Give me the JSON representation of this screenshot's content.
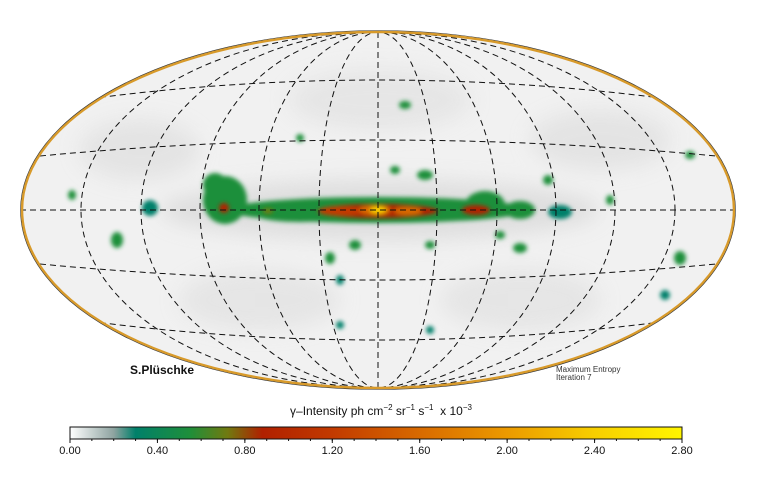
{
  "map": {
    "projection": "Aitoff (all-sky, galactic coordinates)",
    "author_credit": "S.Plüschke",
    "method_line1": "Maximum Entropy",
    "method_line2": "Iteration 7",
    "colors": {
      "background": "#f2f2f2",
      "outline": "#d89a2a",
      "grid": "#111111"
    }
  },
  "colorbar": {
    "title_prefix": "γ–Intensity ph cm",
    "exp_cm": "−2",
    "title_sr": " sr",
    "exp_sr": "−1",
    "title_s": " s",
    "exp_s": "−1",
    "title_scale": "  x 10",
    "exp_scale": "−3",
    "min": 0.0,
    "max": 2.8,
    "ticks": [
      "0.00",
      "0.40",
      "0.80",
      "1.20",
      "1.60",
      "2.00",
      "2.40",
      "2.80"
    ],
    "stops": [
      {
        "v": 0.0,
        "c": "#ffffff"
      },
      {
        "v": 0.2,
        "c": "#8ea3a0"
      },
      {
        "v": 0.3,
        "c": "#00806a"
      },
      {
        "v": 0.55,
        "c": "#1f8f3a"
      },
      {
        "v": 0.72,
        "c": "#707a10"
      },
      {
        "v": 0.88,
        "c": "#b02000"
      },
      {
        "v": 1.2,
        "c": "#c23a00"
      },
      {
        "v": 1.6,
        "c": "#d86a00"
      },
      {
        "v": 2.0,
        "c": "#ec9a00"
      },
      {
        "v": 2.4,
        "c": "#f7cf00"
      },
      {
        "v": 2.8,
        "c": "#fff500"
      }
    ]
  }
}
